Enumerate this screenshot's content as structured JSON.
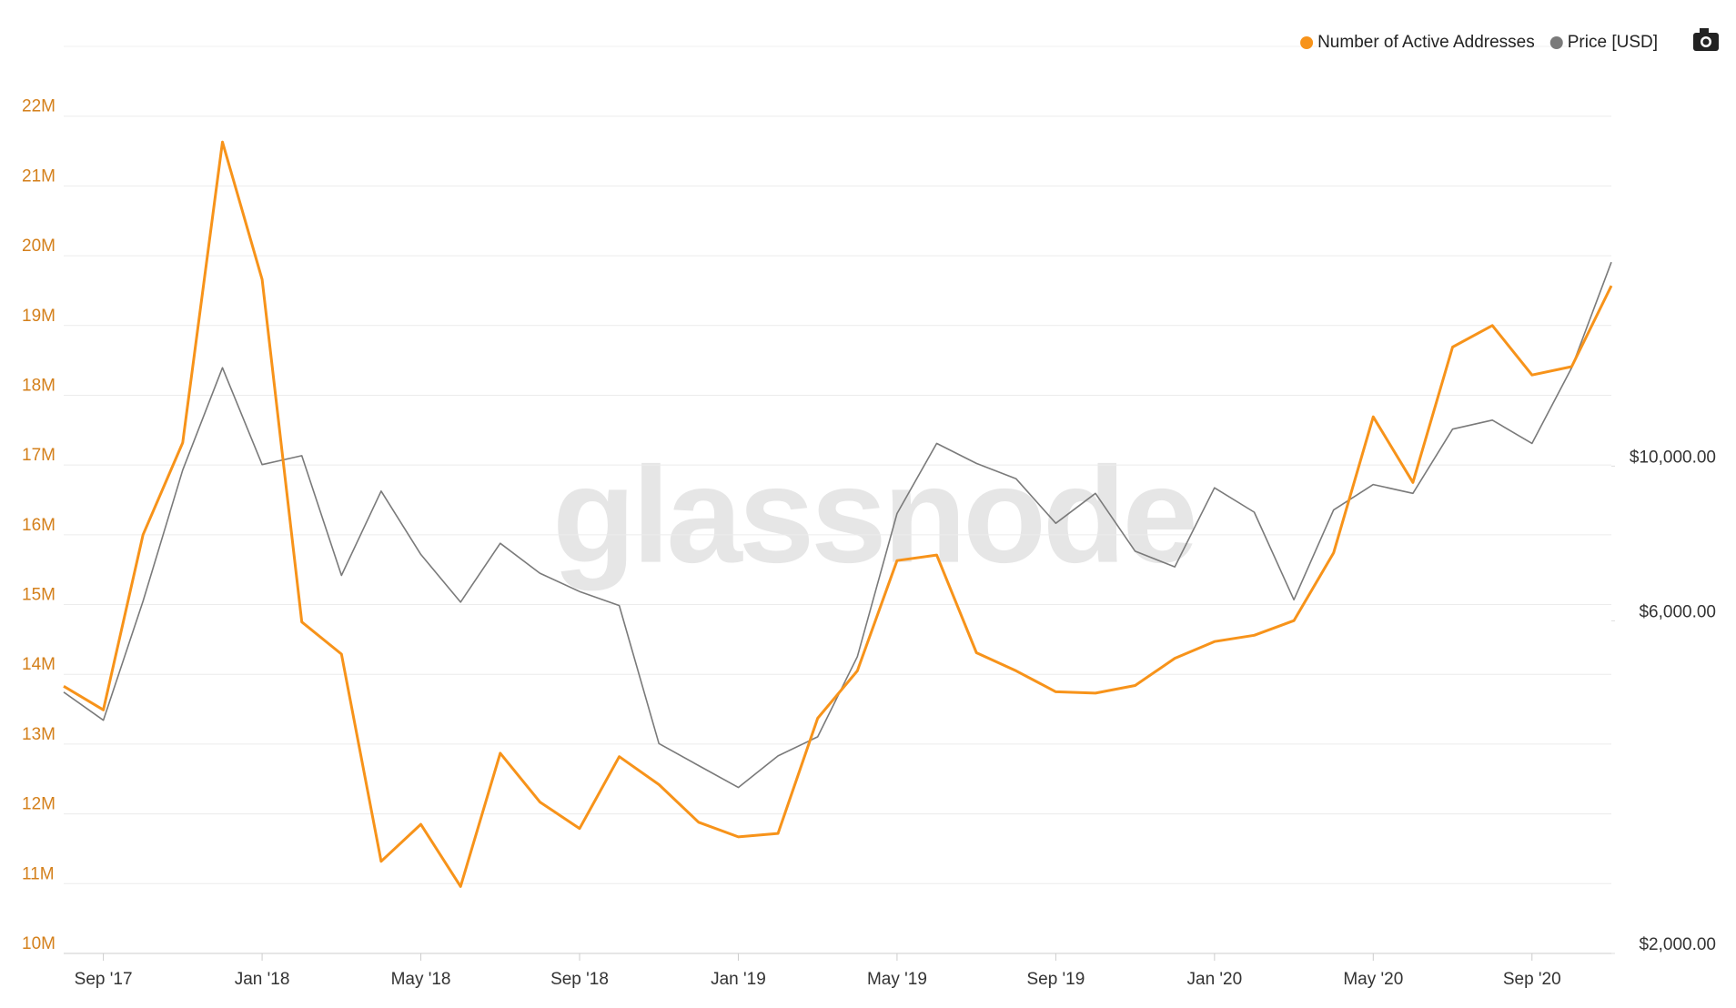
{
  "chart_data": {
    "type": "line",
    "watermark": "glassnode",
    "x": [
      "2017-08",
      "2017-09",
      "2017-10",
      "2017-11",
      "2017-12",
      "2018-01",
      "2018-02",
      "2018-03",
      "2018-04",
      "2018-05",
      "2018-06",
      "2018-07",
      "2018-08",
      "2018-09",
      "2018-10",
      "2018-11",
      "2018-12",
      "2019-01",
      "2019-02",
      "2019-03",
      "2019-04",
      "2019-05",
      "2019-06",
      "2019-07",
      "2019-08",
      "2019-09",
      "2019-10",
      "2019-11",
      "2019-12",
      "2020-01",
      "2020-02",
      "2020-03",
      "2020-04",
      "2020-05",
      "2020-06",
      "2020-07",
      "2020-08",
      "2020-09",
      "2020-10",
      "2020-11"
    ],
    "xlim": [
      "2017-08",
      "2020-11"
    ],
    "xticks": [
      {
        "value": "2017-09",
        "label": "Sep '17"
      },
      {
        "value": "2018-01",
        "label": "Jan '18"
      },
      {
        "value": "2018-05",
        "label": "May '18"
      },
      {
        "value": "2018-09",
        "label": "Sep '18"
      },
      {
        "value": "2019-01",
        "label": "Jan '19"
      },
      {
        "value": "2019-05",
        "label": "May '19"
      },
      {
        "value": "2019-09",
        "label": "Sep '19"
      },
      {
        "value": "2020-01",
        "label": "Jan '20"
      },
      {
        "value": "2020-05",
        "label": "May '20"
      },
      {
        "value": "2020-09",
        "label": "Sep '20"
      }
    ],
    "ylim": [
      10000000,
      23000000
    ],
    "yticks": [
      {
        "value": 10000000,
        "label": "10M"
      },
      {
        "value": 11000000,
        "label": "11M"
      },
      {
        "value": 12000000,
        "label": "12M"
      },
      {
        "value": 13000000,
        "label": "13M"
      },
      {
        "value": 14000000,
        "label": "14M"
      },
      {
        "value": 15000000,
        "label": "15M"
      },
      {
        "value": 16000000,
        "label": "16M"
      },
      {
        "value": 17000000,
        "label": "17M"
      },
      {
        "value": 18000000,
        "label": "18M"
      },
      {
        "value": 19000000,
        "label": "19M"
      },
      {
        "value": 20000000,
        "label": "20M"
      },
      {
        "value": 21000000,
        "label": "21M"
      },
      {
        "value": 22000000,
        "label": "22M"
      }
    ],
    "y2lim": [
      2000,
      40000
    ],
    "y2scale": "log",
    "y2ticks": [
      {
        "value": 2000,
        "label": "$2,000.00"
      },
      {
        "value": 6000,
        "label": "$6,000.00"
      },
      {
        "value": 10000,
        "label": "$10,000.00"
      }
    ],
    "grid": true,
    "legend": "top-right",
    "series": [
      {
        "name": "Number of Active Addresses",
        "color": "#f7931a",
        "axis": "y",
        "values": [
          13830000,
          13490000,
          16000000,
          17320000,
          21630000,
          19660000,
          14750000,
          14290000,
          11320000,
          11850000,
          10960000,
          12870000,
          12170000,
          11790000,
          12820000,
          12420000,
          11880000,
          11670000,
          11720000,
          13370000,
          14050000,
          15630000,
          15710000,
          14310000,
          14050000,
          13750000,
          13730000,
          13840000,
          14230000,
          14470000,
          14560000,
          14770000,
          15740000,
          17690000,
          16750000,
          18690000,
          19000000,
          18290000,
          18410000,
          19570000
        ]
      },
      {
        "name": "Price [USD]",
        "color": "#7a7a7a",
        "axis": "y2",
        "values": [
          4740,
          4320,
          6400,
          9870,
          13840,
          10050,
          10350,
          6970,
          9210,
          7470,
          6380,
          7750,
          7020,
          6610,
          6310,
          4000,
          3720,
          3460,
          3840,
          4090,
          5330,
          8550,
          10780,
          10090,
          9590,
          8280,
          9140,
          7550,
          7170,
          9310,
          8590,
          6430,
          8650,
          9410,
          9140,
          11300,
          11640,
          10780,
          13840,
          19610
        ]
      }
    ]
  }
}
